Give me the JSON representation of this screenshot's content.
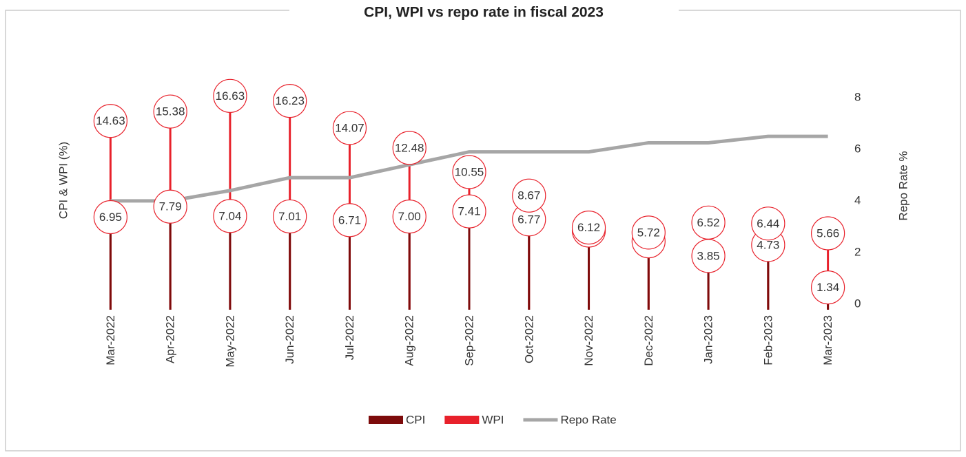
{
  "chart_data": {
    "type": "lollipop",
    "title": "CPI, WPI vs repo rate in fiscal 2023",
    "y_label": "CPI & WPI (%)",
    "y2_label": "Repo Rate %",
    "categories": [
      "Mar-2022",
      "Apr-2022",
      "May-2022",
      "Jun-2022",
      "Jul-2022",
      "Aug-2022",
      "Sep-2022",
      "Oct-2022",
      "Nov-2022",
      "Dec-2022",
      "Jan-2023",
      "Feb-2023",
      "Mar-2023"
    ],
    "series": [
      {
        "name": "CPI",
        "type": "lollipop",
        "color": "#7d0b0b",
        "values": [
          6.95,
          7.79,
          7.04,
          7.01,
          6.71,
          7.0,
          7.41,
          6.77,
          5.88,
          5.02,
          3.85,
          4.73,
          1.34
        ],
        "value_labels": [
          "6.95",
          "7.79",
          "7.04",
          "7.01",
          "6.71",
          "7.00",
          "7.41",
          "6.77",
          "5.88",
          "5.02",
          "3.85",
          "4.73",
          "1.34"
        ]
      },
      {
        "name": "WPI",
        "type": "lollipop",
        "color": "#e8212b",
        "values": [
          14.63,
          15.38,
          16.63,
          16.23,
          14.07,
          12.48,
          10.55,
          8.67,
          6.12,
          5.72,
          6.52,
          6.44,
          5.66
        ],
        "value_labels": [
          "14.63",
          "15.38",
          "16.63",
          "16.23",
          "14.07",
          "12.48",
          "10.55",
          "8.67",
          "6.12",
          "5.72",
          "6.52",
          "6.44",
          "5.66"
        ]
      },
      {
        "name": "Repo Rate",
        "type": "line",
        "axis": "y2",
        "color": "#a6a6a6",
        "values": [
          4.0,
          4.0,
          4.4,
          4.9,
          4.9,
          5.4,
          5.9,
          5.9,
          5.9,
          6.25,
          6.25,
          6.5,
          6.5
        ]
      }
    ],
    "ylim": [
      0,
      20
    ],
    "y2lim": [
      0,
      9.7
    ],
    "y2ticks": [
      0,
      2,
      4,
      6,
      8
    ],
    "grid": false,
    "legend": "bottom"
  }
}
